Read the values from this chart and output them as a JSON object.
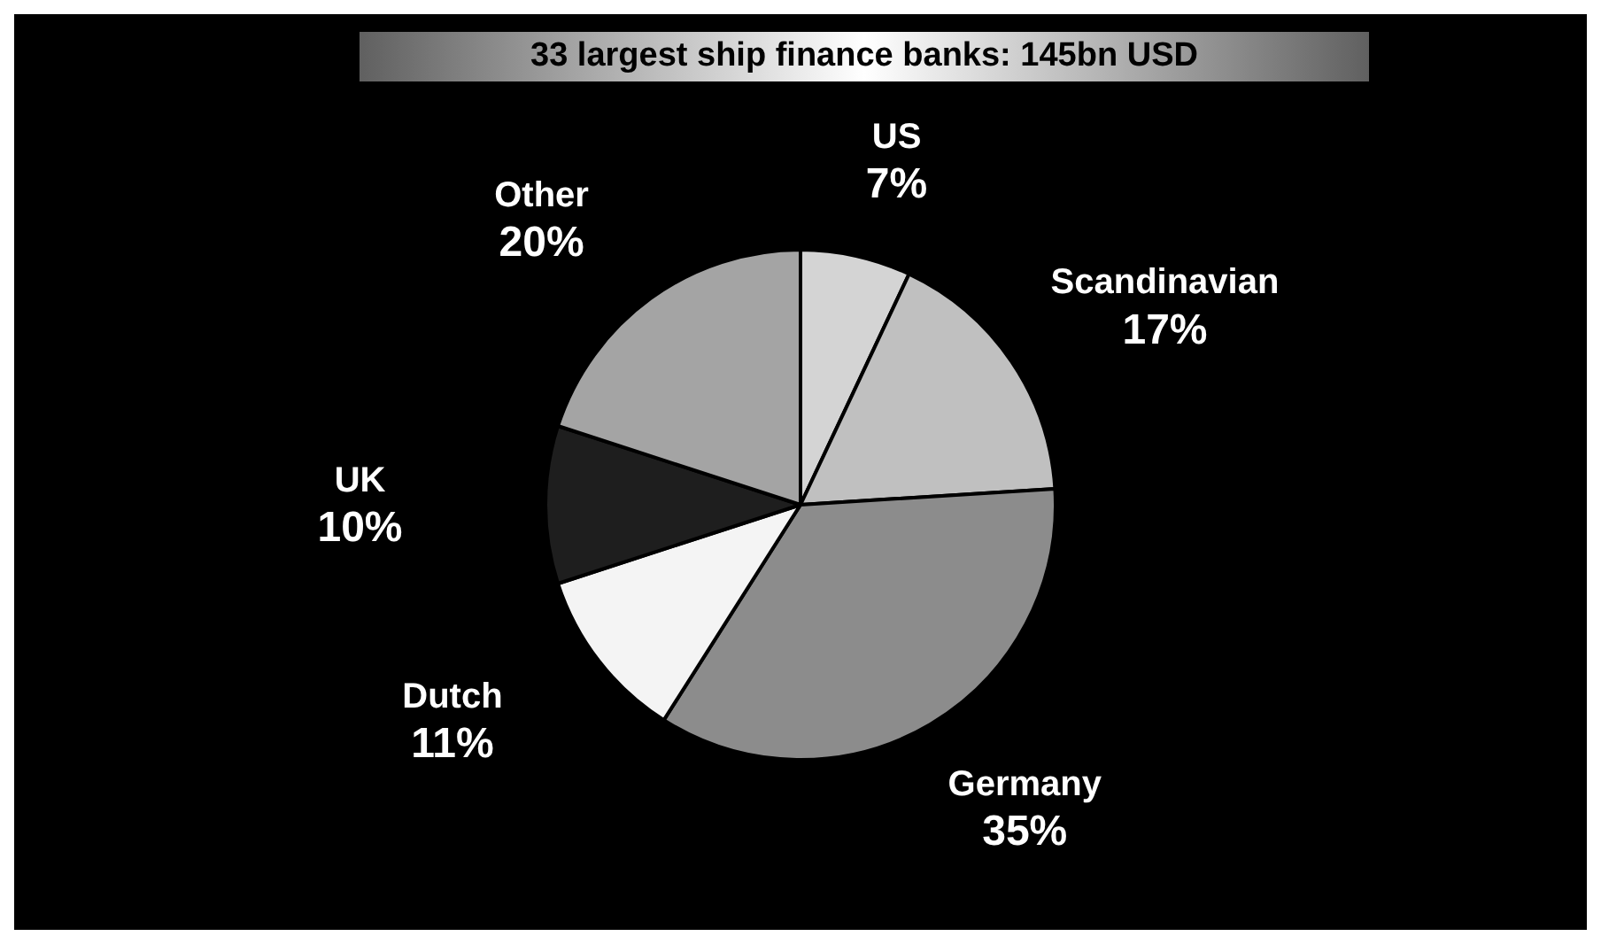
{
  "chart_data": {
    "type": "pie",
    "title": "33 largest ship finance banks: 145bn USD",
    "categories": [
      "US",
      "Scandinavian",
      "Germany",
      "Dutch",
      "UK",
      "Other"
    ],
    "values": [
      7,
      17,
      35,
      11,
      10,
      20
    ],
    "value_labels": [
      "7%",
      "17%",
      "35%",
      "11%",
      "10%",
      "20%"
    ],
    "colors": [
      "#d4d4d4",
      "#c0c0c0",
      "#8c8c8c",
      "#f4f4f4",
      "#1e1e1e",
      "#a4a4a4"
    ],
    "legend": false
  }
}
